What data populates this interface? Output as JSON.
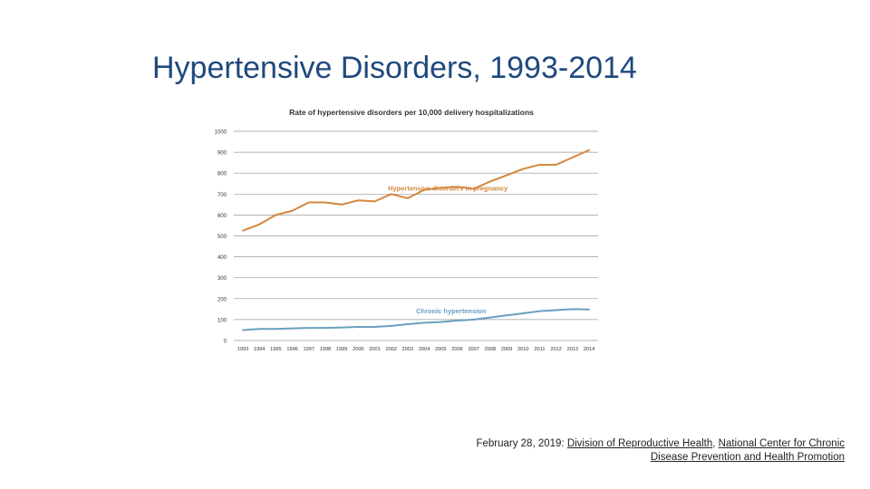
{
  "slide": {
    "title": "Hypertensive Disorders, 1993-2014"
  },
  "footer": {
    "date_prefix": "February 28, 2019: ",
    "link1": "Division of Reproductive Health",
    "separator": ", ",
    "link2": "National Center for Chronic Disease Prevention and Health Promotion"
  },
  "chart_data": {
    "type": "line",
    "title": "Rate of hypertensive disorders per 10,000 delivery hospitalizations",
    "xlabel": "",
    "ylabel": "",
    "ylim": [
      0,
      1000
    ],
    "grid": true,
    "y_ticks": [
      0,
      100,
      200,
      300,
      400,
      500,
      600,
      700,
      800,
      900,
      1000
    ],
    "categories": [
      "1993",
      "1994",
      "1995",
      "1996",
      "1997",
      "1998",
      "1999",
      "2000",
      "2001",
      "2002",
      "2003",
      "2004",
      "2005",
      "2006",
      "2007",
      "2008",
      "2009",
      "2010",
      "2011",
      "2012",
      "2013",
      "2014"
    ],
    "series": [
      {
        "name": "Hypertensive disorders in pregnancy",
        "color": "#d4873e",
        "values": [
          525,
          555,
          600,
          620,
          660,
          660,
          650,
          670,
          665,
          700,
          680,
          720,
          730,
          735,
          725,
          760,
          790,
          820,
          840,
          840,
          875,
          910
        ]
      },
      {
        "name": "Chronic hypertension",
        "color": "#6a9fc0",
        "values": [
          50,
          55,
          55,
          58,
          60,
          60,
          62,
          65,
          65,
          70,
          78,
          85,
          88,
          95,
          100,
          110,
          120,
          130,
          140,
          145,
          150,
          148
        ]
      }
    ]
  }
}
